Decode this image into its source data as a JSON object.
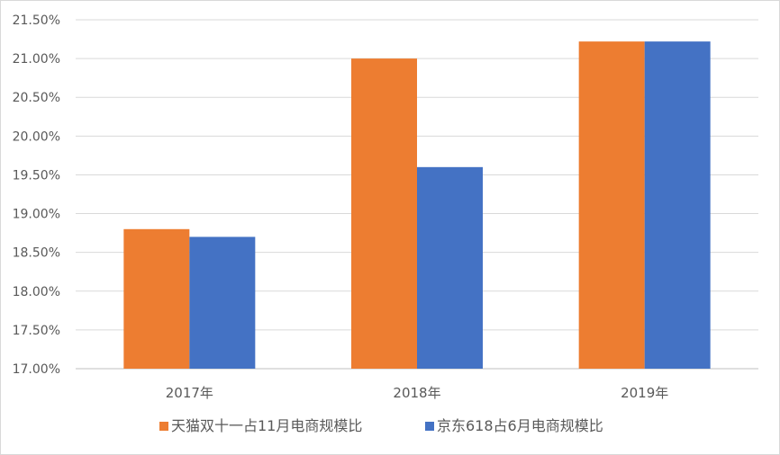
{
  "chart_data": {
    "type": "bar",
    "title": "",
    "xlabel": "",
    "ylabel": "",
    "categories": [
      "2017年",
      "2018年",
      "2019年"
    ],
    "series": [
      {
        "name": "天猫双十一占11月电商规模比",
        "color": "#ED7D31",
        "values": [
          18.8,
          21.0,
          21.22
        ]
      },
      {
        "name": "京东618占6月电商规模比",
        "color": "#4472C4",
        "values": [
          18.7,
          19.6,
          21.22
        ]
      }
    ],
    "ylim": [
      17.0,
      21.5
    ],
    "yticks": [
      17.0,
      17.5,
      18.0,
      18.5,
      19.0,
      19.5,
      20.0,
      20.5,
      21.0,
      21.5
    ],
    "ytick_labels": [
      "17.00%",
      "17.50%",
      "18.00%",
      "18.50%",
      "19.00%",
      "19.50%",
      "20.00%",
      "20.50%",
      "21.00%",
      "21.50%"
    ],
    "grid": true,
    "legend_position": "bottom"
  }
}
